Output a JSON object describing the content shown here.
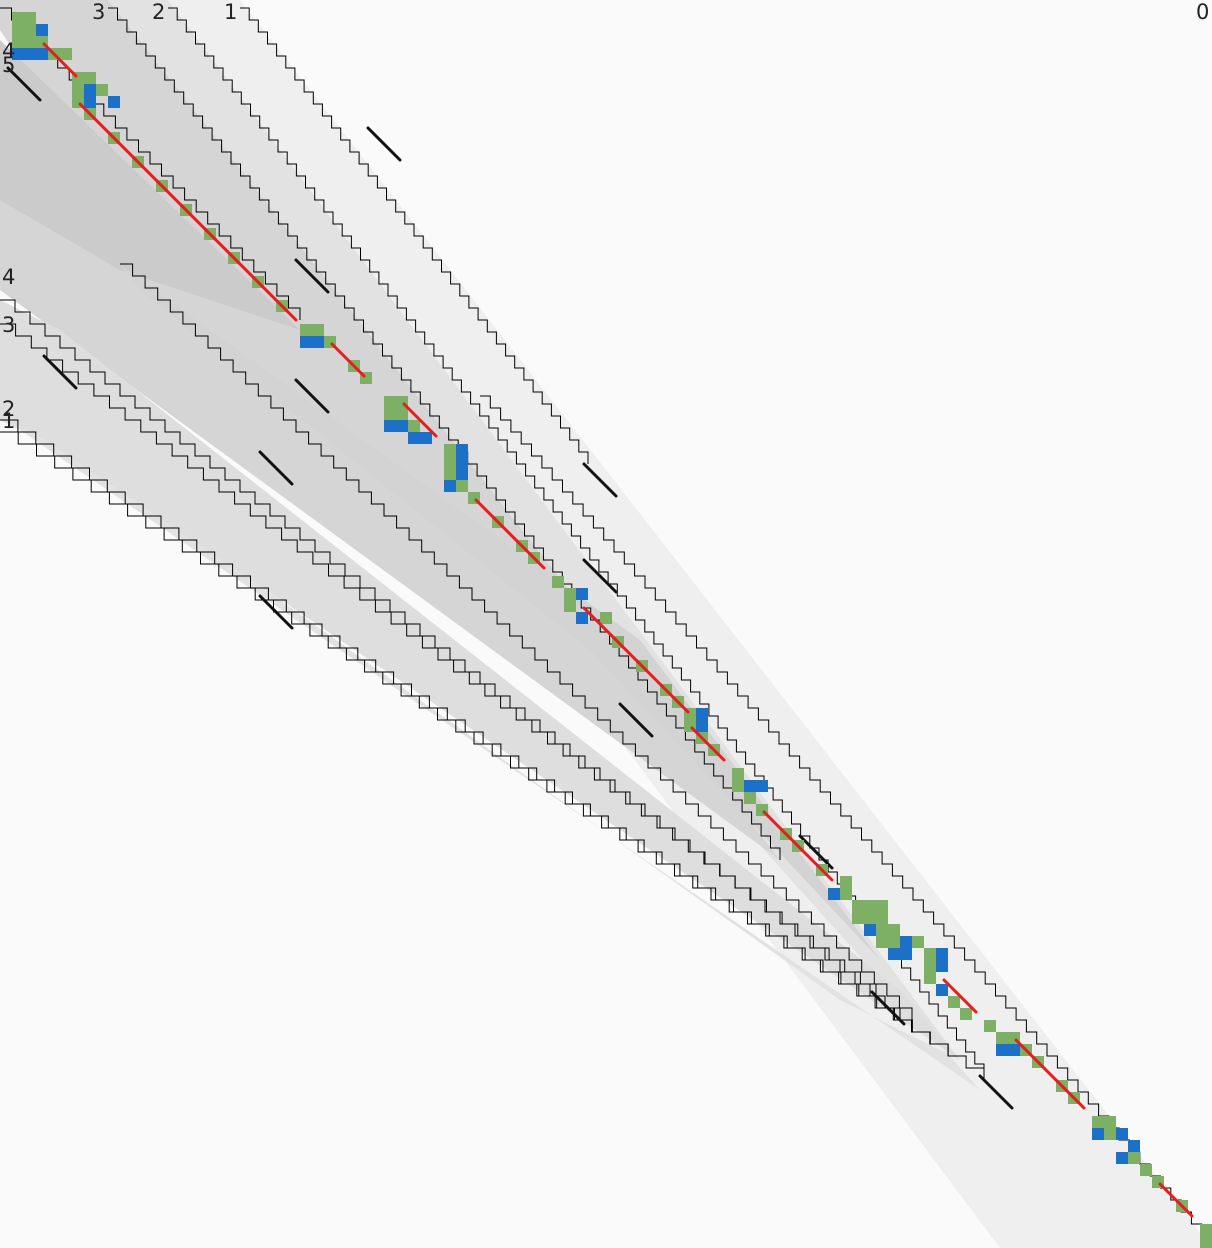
{
  "diagram": {
    "kind": "sequence alignment dot plot (banded DP matrix)",
    "top_labels": [
      "3",
      "2",
      "1",
      "0"
    ],
    "left_labels": [
      "4",
      "5",
      "4",
      "3",
      "2",
      "1"
    ],
    "colors": {
      "background": "#fafafa",
      "band_level_1": "#efefef",
      "band_level_2": "#e2e2e2",
      "band_level_3": "#d5d5d5",
      "band_level_4": "#cbcbcb",
      "match_cell": "#7db065",
      "mismatch_cell": "#1c70c8",
      "optimal_path": "#e02020",
      "diagonal_seed": "#111111",
      "band_outline": "#000000"
    },
    "legend_semantics": {
      "match_cell": "green cell",
      "mismatch_cell": "blue cell",
      "optimal_path": "red diagonal segments",
      "diagonal_seed": "black diagonal segments"
    }
  }
}
